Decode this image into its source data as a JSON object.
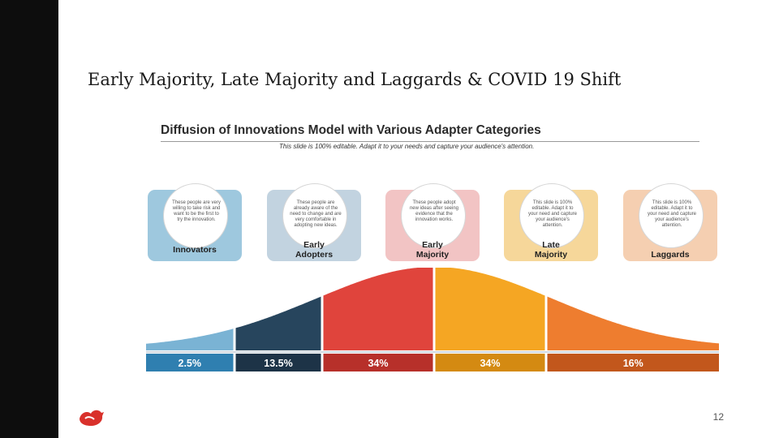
{
  "slide": {
    "title": "Early Majority, Late Majority and Laggards & COVID 19 Shift",
    "page_number": "12"
  },
  "infographic": {
    "title": "Diffusion of Innovations Model with Various Adapter Categories",
    "subtitle": "This slide is 100% editable. Adapt it to your needs and capture your audience's attention.",
    "categories": [
      {
        "label_line1": "Innovators",
        "label_line2": "",
        "text": "These people are very willing to take risk and want to be the first to try the innovation.",
        "color": "#9ec8de"
      },
      {
        "label_line1": "Early",
        "label_line2": "Adopters",
        "text": "These people are already aware of the need to change and are very comfortable in adopting new ideas.",
        "color": "#c2d3e0"
      },
      {
        "label_line1": "Early",
        "label_line2": "Majority",
        "text": "These people adopt new ideas after seeing evidence that the innovation works.",
        "color": "#f2c4c4"
      },
      {
        "label_line1": "Late",
        "label_line2": "Majority",
        "text": "This slide is 100% editable. Adapt it to your need and capture your audience's attention.",
        "color": "#f6d79a"
      },
      {
        "label_line1": "Laggards",
        "label_line2": "",
        "text": "This slide is 100% editable. Adapt it to your need and capture your audience's attention.",
        "color": "#f5cfb1"
      }
    ]
  },
  "chart_data": {
    "type": "area",
    "categories": [
      "Innovators",
      "Early Adopters",
      "Early Majority",
      "Late Majority",
      "Laggards"
    ],
    "values": [
      2.5,
      13.5,
      34,
      34,
      16
    ],
    "value_labels": [
      "2.5%",
      "13.5%",
      "34%",
      "34%",
      "16%"
    ],
    "segment_colors": [
      "#7ab3d4",
      "#27455d",
      "#e0443c",
      "#f5a623",
      "#ee7d2f"
    ],
    "band_colors": [
      "#2f7fb0",
      "#1d3347",
      "#b7302a",
      "#d48a12",
      "#c2571c"
    ]
  }
}
